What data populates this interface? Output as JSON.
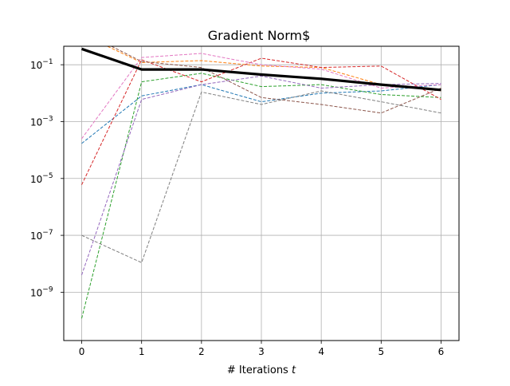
{
  "chart_data": {
    "type": "line",
    "title": "Gradient Norm$",
    "xlabel": "# Iterations",
    "xlabel_italic": "t",
    "ylabel": "",
    "y_scale": "log",
    "xlim": [
      -0.3,
      6.3
    ],
    "ylim_exp": [
      -10.7,
      -0.35
    ],
    "grid": true,
    "x": [
      0,
      1,
      2,
      3,
      4,
      5,
      6
    ],
    "x_ticks": [
      "0",
      "1",
      "2",
      "3",
      "4",
      "5",
      "6"
    ],
    "y_ticks": [
      {
        "exp": -1,
        "label": "10"
      },
      {
        "exp": -3,
        "label": "10"
      },
      {
        "exp": -5,
        "label": "10"
      },
      {
        "exp": -7,
        "label": "10"
      },
      {
        "exp": -9,
        "label": "10"
      }
    ],
    "y_tick_exponents": [
      "−1",
      "−3",
      "−5",
      "−7",
      "−9"
    ],
    "series": [
      {
        "color": "#1f77b4",
        "style": "dashed",
        "values": [
          0.00017,
          0.008,
          0.02,
          0.005,
          0.01,
          0.012,
          0.02
        ]
      },
      {
        "color": "#ff7f0e",
        "style": "dashed",
        "values": [
          1.2,
          0.12,
          0.14,
          0.09,
          0.08,
          0.02,
          0.012
        ]
      },
      {
        "color": "#2ca02c",
        "style": "dashed",
        "values": [
          1.2e-10,
          0.025,
          0.05,
          0.017,
          0.02,
          0.009,
          0.007
        ]
      },
      {
        "color": "#d62728",
        "style": "dashed",
        "values": [
          6e-06,
          0.15,
          0.025,
          0.17,
          0.08,
          0.09,
          0.006
        ]
      },
      {
        "color": "#9467bd",
        "style": "dashed",
        "values": [
          4e-09,
          0.006,
          0.02,
          0.04,
          0.015,
          0.02,
          0.022
        ]
      },
      {
        "color": "#8c564b",
        "style": "dashed",
        "values": [
          1.5,
          0.13,
          0.08,
          0.007,
          0.004,
          0.002,
          0.015
        ]
      },
      {
        "color": "#e377c2",
        "style": "dashed",
        "values": [
          0.00025,
          0.18,
          0.25,
          0.1,
          0.07,
          0.015,
          0.02
        ]
      },
      {
        "color": "#7f7f7f",
        "style": "dashed",
        "values": [
          1e-07,
          1.1e-08,
          0.011,
          0.004,
          0.012,
          0.005,
          0.002
        ]
      },
      {
        "color": "#000000",
        "style": "solid",
        "bold": true,
        "values": [
          0.36,
          0.068,
          0.068,
          0.045,
          0.032,
          0.02,
          0.013
        ]
      }
    ]
  }
}
